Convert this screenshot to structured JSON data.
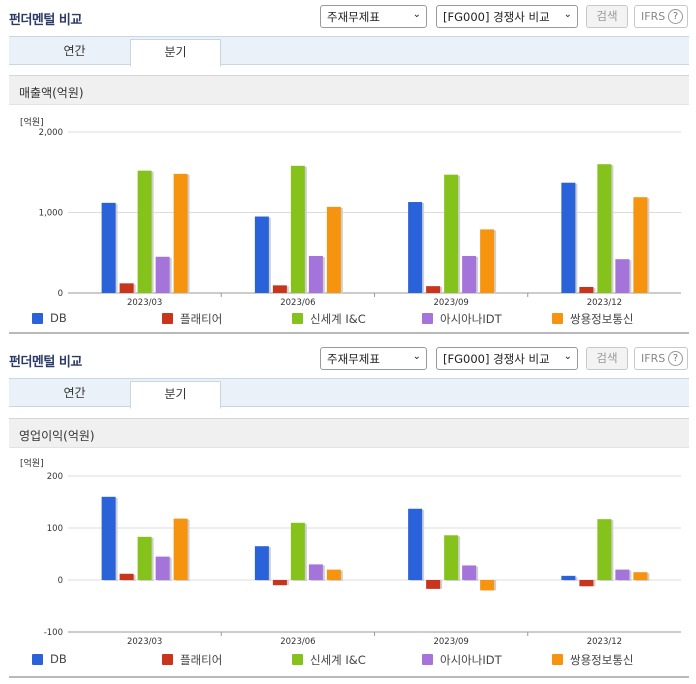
{
  "colors": {
    "DB": "#2a62d9",
    "플래티어": "#c8341c",
    "신세계 I&C": "#86c21c",
    "아시아나IDT": "#a474da",
    "쌍용정보통신": "#f7940f"
  },
  "sections": [
    {
      "title": "펀더멘털 비교",
      "select1": "주재무제표",
      "select2": "[FG000] 경쟁사 비교",
      "search_button": "검색",
      "ifrs_label": "IFRS",
      "help_icon": "?",
      "tabs": [
        "연간",
        "분기"
      ],
      "active_tab": "분기",
      "panel_title": "매출액(억원)"
    },
    {
      "title": "펀더멘털 비교",
      "select1": "주재무제표",
      "select2": "[FG000] 경쟁사 비교",
      "search_button": "검색",
      "ifrs_label": "IFRS",
      "help_icon": "?",
      "tabs": [
        "연간",
        "분기"
      ],
      "active_tab": "분기",
      "panel_title": "영업이익(억원)"
    }
  ],
  "chart_data": [
    {
      "type": "bar",
      "unit_label": "[억원]",
      "categories": [
        "2023/03",
        "2023/06",
        "2023/09",
        "2023/12"
      ],
      "ylim": [
        0,
        2000
      ],
      "yticks": [
        0,
        1000,
        2000
      ],
      "ytick_labels": [
        "0",
        "1,000",
        "2,000"
      ],
      "grid": true,
      "legend_position": "bottom",
      "series": [
        {
          "name": "DB",
          "values": [
            1120,
            950,
            1130,
            1370
          ]
        },
        {
          "name": "플래티어",
          "values": [
            120,
            95,
            85,
            75
          ]
        },
        {
          "name": "신세계 I&C",
          "values": [
            1520,
            1580,
            1470,
            1600
          ]
        },
        {
          "name": "아시아나IDT",
          "values": [
            450,
            460,
            460,
            420
          ]
        },
        {
          "name": "쌍용정보통신",
          "values": [
            1480,
            1070,
            790,
            1190
          ]
        }
      ]
    },
    {
      "type": "bar",
      "unit_label": "[억원]",
      "categories": [
        "2023/03",
        "2023/06",
        "2023/09",
        "2023/12"
      ],
      "ylim": [
        -100,
        200
      ],
      "yticks": [
        -100,
        0,
        100,
        200
      ],
      "ytick_labels": [
        "-100",
        "0",
        "100",
        "200"
      ],
      "grid": true,
      "legend_position": "bottom",
      "series": [
        {
          "name": "DB",
          "values": [
            160,
            65,
            137,
            8
          ]
        },
        {
          "name": "플래티어",
          "values": [
            12,
            -10,
            -17,
            -12
          ]
        },
        {
          "name": "신세계 I&C",
          "values": [
            83,
            110,
            86,
            117
          ]
        },
        {
          "name": "아시아나IDT",
          "values": [
            45,
            30,
            28,
            20
          ]
        },
        {
          "name": "쌍용정보통신",
          "values": [
            118,
            20,
            -20,
            15
          ]
        }
      ]
    }
  ]
}
